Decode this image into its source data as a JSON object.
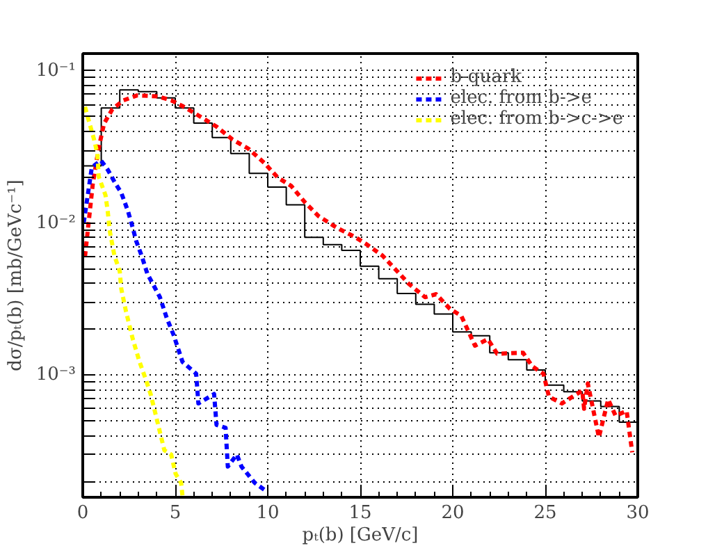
{
  "chart_data": {
    "type": "line",
    "xlabel": "pₜ(b) [GeV/c]",
    "ylabel": "dσ/pₜ(b) [mb/GeVc⁻¹]",
    "xlim": [
      0,
      30
    ],
    "xticks": [
      0,
      5,
      10,
      15,
      20,
      25,
      30
    ],
    "ylim": [
      0.000157,
      0.13
    ],
    "log": "y",
    "yticks": [
      {
        "value": 0.0002,
        "label": null
      },
      {
        "value": 0.0003,
        "label": null
      },
      {
        "value": 0.0004,
        "label": null
      },
      {
        "value": 0.0005,
        "label": null
      },
      {
        "value": 0.0006,
        "label": null
      },
      {
        "value": 0.0007,
        "label": null
      },
      {
        "value": 0.0008,
        "label": null
      },
      {
        "value": 0.0009,
        "label": null
      },
      {
        "value": 0.001,
        "label": "10⁻³"
      },
      {
        "value": 0.002,
        "label": null
      },
      {
        "value": 0.003,
        "label": null
      },
      {
        "value": 0.004,
        "label": null
      },
      {
        "value": 0.005,
        "label": null
      },
      {
        "value": 0.006,
        "label": null
      },
      {
        "value": 0.007,
        "label": null
      },
      {
        "value": 0.008,
        "label": null
      },
      {
        "value": 0.009,
        "label": null
      },
      {
        "value": 0.01,
        "label": "10⁻²"
      },
      {
        "value": 0.02,
        "label": null
      },
      {
        "value": 0.03,
        "label": null
      },
      {
        "value": 0.04,
        "label": null
      },
      {
        "value": 0.05,
        "label": null
      },
      {
        "value": 0.06,
        "label": null
      },
      {
        "value": 0.07,
        "label": null
      },
      {
        "value": 0.08,
        "label": null
      },
      {
        "value": 0.09,
        "label": null
      },
      {
        "value": 0.1,
        "label": "10⁻¹"
      }
    ],
    "grid": true,
    "legend": "top right",
    "line_style": "dashed",
    "series": [
      {
        "type": "histogram",
        "color": "#000000",
        "line_style": "solid",
        "bins": [
          0,
          1,
          2,
          3,
          4,
          5,
          6,
          7,
          8,
          9,
          10,
          11,
          12,
          13,
          14,
          15,
          16,
          17,
          18,
          19,
          20,
          21,
          22,
          23,
          24,
          25,
          26,
          27,
          28,
          29,
          30
        ],
        "values": [
          0.0237,
          0.057,
          0.075,
          0.073,
          0.0665,
          0.057,
          0.0453,
          0.0364,
          0.0286,
          0.0212,
          0.0172,
          0.01315,
          0.00805,
          0.0072,
          0.0066,
          0.0052,
          0.0043,
          0.00344,
          0.00292,
          0.00252,
          0.00192,
          0.00181,
          0.0014,
          0.00126,
          0.00108,
          0.000858,
          0.000777,
          0.000675,
          0.00062,
          0.000489
        ]
      },
      {
        "name": "b-quark",
        "color": "#ff0000",
        "x": [
          0.12,
          0.54,
          0.86,
          1.15,
          1.6,
          2.2,
          2.94,
          4.04,
          4.78,
          5.39,
          6.13,
          7.23,
          8.09,
          8.95,
          9.8,
          10.54,
          11.27,
          12.0,
          12.74,
          13.73,
          14.7,
          15.3,
          16.2,
          17.15,
          17.6,
          18.5,
          19.1,
          19.85,
          20.46,
          21.2,
          21.9,
          22.4,
          23.8,
          24.3,
          24.9,
          25.2,
          25.9,
          27.0,
          27.1,
          27.3,
          27.9,
          28.4,
          28.8,
          29.4,
          29.7
        ],
        "values": [
          0.006,
          0.018,
          0.031,
          0.045,
          0.056,
          0.064,
          0.069,
          0.068,
          0.064,
          0.0587,
          0.052,
          0.043,
          0.0354,
          0.0308,
          0.0249,
          0.0199,
          0.0175,
          0.0137,
          0.0111,
          0.0093,
          0.0081,
          0.0073,
          0.0061,
          0.0046,
          0.004,
          0.00325,
          0.0034,
          0.00272,
          0.00245,
          0.00156,
          0.00172,
          0.00138,
          0.0014,
          0.00114,
          0.00102,
          0.00072,
          0.00065,
          0.00079,
          0.0006,
          0.00088,
          0.00039,
          0.00069,
          0.00054,
          0.00058,
          0.00031
        ]
      },
      {
        "name": "elec. from b->e",
        "color": "#0000ff",
        "x": [
          0.05,
          0.49,
          0.98,
          1.35,
          1.76,
          2.08,
          2.45,
          2.7,
          2.89,
          3.18,
          3.5,
          3.68,
          4.17,
          4.54,
          4.9,
          5.39,
          6.13,
          6.25,
          7.1,
          7.23,
          7.72,
          7.84,
          8.33,
          8.58,
          9.3,
          9.93
        ],
        "values": [
          0.01,
          0.0232,
          0.0258,
          0.0224,
          0.0182,
          0.0158,
          0.0119,
          0.0093,
          0.0076,
          0.0061,
          0.0046,
          0.0042,
          0.00325,
          0.00237,
          0.00185,
          0.00122,
          0.00102,
          0.00065,
          0.00075,
          0.00047,
          0.00045,
          0.00025,
          0.0003,
          0.00025,
          0.000195,
          0.000172
        ]
      },
      {
        "name": "elec. from b->c->e",
        "color": "#ffff00",
        "x": [
          0.12,
          0.37,
          0.61,
          0.79,
          0.86,
          1.23,
          1.35,
          1.47,
          1.71,
          2.0,
          2.08,
          2.33,
          2.7,
          3.07,
          3.43,
          3.68,
          4.04,
          4.41,
          4.78,
          5.02,
          5.32,
          5.39
        ],
        "values": [
          0.058,
          0.045,
          0.0354,
          0.0286,
          0.0202,
          0.0152,
          0.0119,
          0.0087,
          0.0061,
          0.0048,
          0.0037,
          0.00264,
          0.00173,
          0.00122,
          0.00092,
          0.00074,
          0.00049,
          0.00032,
          0.0003,
          0.000224,
          0.000195,
          0.00016
        ]
      }
    ]
  }
}
